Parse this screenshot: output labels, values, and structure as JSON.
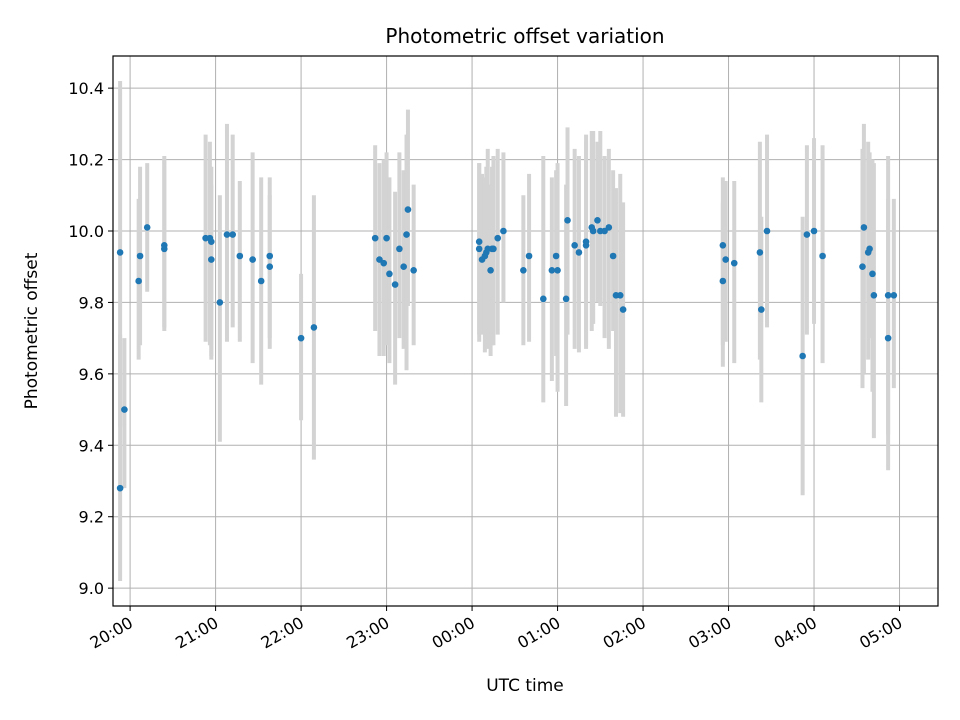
{
  "chart_data": {
    "type": "scatter",
    "title": "Photometric offset variation",
    "xlabel": "UTC time",
    "ylabel": "Photometric offset",
    "xlim_hours": [
      19.8,
      29.45
    ],
    "ylim": [
      8.95,
      10.49
    ],
    "grid": true,
    "x_tick_labels": [
      "20:00",
      "21:00",
      "22:00",
      "23:00",
      "00:00",
      "01:00",
      "02:00",
      "03:00",
      "04:00",
      "05:00"
    ],
    "x_tick_hours": [
      20,
      21,
      22,
      23,
      24,
      25,
      26,
      27,
      28,
      29
    ],
    "y_ticks": [
      9.0,
      9.2,
      9.4,
      9.6,
      9.8,
      10.0,
      10.2,
      10.4
    ],
    "colors": {
      "points": "#1f77b4",
      "errorbars": "#d3d3d3"
    },
    "series": [
      {
        "x_time": [
          "19:53",
          "19:53",
          "19:56",
          "20:06",
          "20:07",
          "20:12",
          "20:24",
          "20:24",
          "20:53",
          "20:56",
          "20:57",
          "20:57",
          "21:03",
          "21:08",
          "21:12",
          "21:17",
          "21:26",
          "21:32",
          "21:38",
          "21:38",
          "22:00",
          "22:09",
          "22:52",
          "22:55",
          "22:58",
          "23:00",
          "23:02",
          "23:06",
          "23:09",
          "23:12",
          "23:14",
          "23:15",
          "23:19",
          "00:05",
          "00:05",
          "00:07",
          "00:09",
          "00:10",
          "00:11",
          "00:13",
          "00:14",
          "00:15",
          "00:18",
          "00:22",
          "00:36",
          "00:40",
          "00:50",
          "00:56",
          "00:59",
          "01:00",
          "01:06",
          "01:07",
          "01:12",
          "01:15",
          "01:20",
          "01:20",
          "01:24",
          "01:25",
          "01:28",
          "01:30",
          "01:33",
          "01:36",
          "01:39",
          "01:41",
          "01:44",
          "01:46",
          "02:56",
          "02:56",
          "02:58",
          "03:04",
          "03:22",
          "03:23",
          "03:27",
          "03:52",
          "03:55",
          "04:00",
          "04:06",
          "04:34",
          "04:35",
          "04:38",
          "04:39",
          "04:41",
          "04:42",
          "04:52",
          "04:52",
          "04:56"
        ],
        "y": [
          9.94,
          9.28,
          9.5,
          9.86,
          9.93,
          10.01,
          9.96,
          9.95,
          9.98,
          9.98,
          9.97,
          9.92,
          9.8,
          9.99,
          9.99,
          9.93,
          9.92,
          9.86,
          9.93,
          9.9,
          9.7,
          9.73,
          9.98,
          9.92,
          9.91,
          9.98,
          9.88,
          9.85,
          9.95,
          9.9,
          9.99,
          10.06,
          9.89,
          9.97,
          9.95,
          9.92,
          9.93,
          9.94,
          9.95,
          9.89,
          9.95,
          9.95,
          9.98,
          10.0,
          9.89,
          9.93,
          9.81,
          9.89,
          9.93,
          9.89,
          9.81,
          10.03,
          9.96,
          9.94,
          9.96,
          9.97,
          10.01,
          10.0,
          10.03,
          10.0,
          10.0,
          10.01,
          9.93,
          9.82,
          9.82,
          9.78,
          9.86,
          9.96,
          9.92,
          9.91,
          9.94,
          9.78,
          10.0,
          9.65,
          9.99,
          10.0,
          9.93,
          9.9,
          10.01,
          9.94,
          9.95,
          9.88,
          9.82,
          9.82,
          9.7,
          9.82
        ],
        "yerr_low": [
          9.45,
          9.02,
          9.28,
          9.64,
          9.68,
          9.83,
          9.73,
          9.72,
          9.69,
          9.68,
          9.65,
          9.64,
          9.41,
          9.69,
          9.73,
          9.69,
          9.63,
          9.57,
          9.7,
          9.67,
          9.47,
          9.36,
          9.72,
          9.65,
          9.65,
          9.68,
          9.63,
          9.57,
          9.7,
          9.67,
          9.61,
          9.79,
          9.68,
          9.71,
          9.69,
          9.71,
          9.66,
          9.68,
          9.67,
          9.65,
          9.68,
          9.68,
          9.71,
          9.8,
          9.68,
          9.69,
          9.52,
          9.58,
          9.65,
          9.55,
          9.51,
          9.71,
          9.67,
          9.66,
          9.68,
          9.67,
          9.72,
          9.74,
          9.8,
          9.79,
          9.7,
          9.67,
          9.72,
          9.48,
          9.49,
          9.48,
          9.62,
          9.68,
          9.69,
          9.63,
          9.64,
          9.52,
          9.73,
          9.26,
          9.71,
          9.74,
          9.63,
          9.56,
          9.6,
          9.64,
          9.7,
          9.55,
          9.42,
          9.33,
          9.43,
          9.56
        ],
        "yerr_high": [
          10.42,
          9.71,
          9.7,
          10.09,
          10.18,
          10.19,
          10.2,
          10.21,
          10.27,
          10.25,
          10.18,
          10.13,
          10.1,
          10.3,
          10.27,
          10.14,
          10.22,
          10.15,
          10.15,
          10.1,
          9.88,
          10.1,
          10.24,
          10.19,
          10.2,
          10.22,
          10.15,
          10.11,
          10.22,
          10.17,
          10.27,
          10.34,
          10.13,
          10.19,
          10.19,
          10.16,
          10.15,
          10.18,
          10.23,
          10.13,
          10.18,
          10.21,
          10.23,
          10.22,
          10.1,
          10.16,
          10.21,
          10.15,
          10.17,
          10.19,
          10.13,
          10.29,
          10.23,
          10.21,
          10.27,
          10.25,
          10.28,
          10.28,
          10.25,
          10.28,
          10.21,
          10.23,
          10.17,
          10.12,
          10.16,
          10.08,
          10.08,
          10.15,
          10.14,
          10.14,
          10.25,
          10.04,
          10.27,
          10.04,
          10.24,
          10.26,
          10.24,
          10.23,
          10.3,
          10.25,
          10.22,
          10.2,
          10.19,
          10.21,
          10.09,
          10.09
        ]
      }
    ]
  }
}
